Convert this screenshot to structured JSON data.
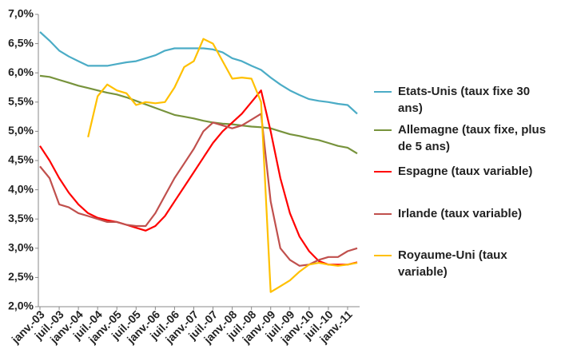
{
  "chart_data": {
    "type": "line",
    "categories": [
      "janv.-03",
      null,
      "juil.-03",
      null,
      "janv.-04",
      null,
      "juil.-04",
      null,
      "janv.-05",
      null,
      "juil.-05",
      null,
      "janv.-06",
      null,
      "juil.-06",
      null,
      "janv.-07",
      null,
      "juil.-07",
      null,
      "janv.-08",
      null,
      "juil.-08",
      null,
      "janv.-09",
      null,
      "juil.-09",
      null,
      "janv.-10",
      null,
      "juil.-10",
      null,
      "janv.-11",
      null
    ],
    "ylim": [
      2,
      7
    ],
    "yticks": [
      {
        "value": 2,
        "label": "2,0%"
      },
      {
        "value": 2.5,
        "label": "2,5%"
      },
      {
        "value": 3,
        "label": "3,0%"
      },
      {
        "value": 3.5,
        "label": "3,5%"
      },
      {
        "value": 4,
        "label": "4,0%"
      },
      {
        "value": 4.5,
        "label": "4,5%"
      },
      {
        "value": 5,
        "label": "5,0%"
      },
      {
        "value": 5.5,
        "label": "5,5%"
      },
      {
        "value": 6,
        "label": "6,0%"
      },
      {
        "value": 6.5,
        "label": "6,5%"
      },
      {
        "value": 7,
        "label": "7,0%"
      }
    ],
    "grid": false,
    "series": [
      {
        "name": "Etats-Unis (taux fixe 30 ans)",
        "color": "#4bacc6",
        "values": [
          6.7,
          6.55,
          6.38,
          6.28,
          6.2,
          6.12,
          6.12,
          6.12,
          6.15,
          6.18,
          6.2,
          6.25,
          6.3,
          6.38,
          6.42,
          6.42,
          6.42,
          6.42,
          6.4,
          6.35,
          6.25,
          6.2,
          6.12,
          6.05,
          5.92,
          5.8,
          5.7,
          5.62,
          5.55,
          5.52,
          5.5,
          5.47,
          5.45,
          5.3
        ]
      },
      {
        "name": "Allemagne (taux fixe, plus de 5 ans)",
        "color": "#77933c",
        "values": [
          5.95,
          5.93,
          5.88,
          5.83,
          5.78,
          5.74,
          5.7,
          5.66,
          5.63,
          5.58,
          5.52,
          5.46,
          5.4,
          5.34,
          5.28,
          5.25,
          5.22,
          5.18,
          5.15,
          5.13,
          5.12,
          5.1,
          5.08,
          5.07,
          5.05,
          5.0,
          4.95,
          4.92,
          4.88,
          4.85,
          4.8,
          4.75,
          4.72,
          4.62
        ]
      },
      {
        "name": "Espagne (taux variable)",
        "color": "#ff0000",
        "values": [
          4.75,
          4.5,
          4.2,
          3.95,
          3.75,
          3.6,
          3.52,
          3.48,
          3.45,
          3.4,
          3.35,
          3.3,
          3.38,
          3.55,
          3.8,
          4.05,
          4.3,
          4.55,
          4.8,
          5.0,
          5.15,
          5.3,
          5.5,
          5.7,
          5.0,
          4.2,
          3.6,
          3.2,
          2.95,
          2.78,
          2.72,
          2.72,
          2.72,
          2.76
        ]
      },
      {
        "name": "Irlande (taux variable)",
        "color": "#c0504d",
        "values": [
          4.4,
          4.2,
          3.75,
          3.7,
          3.6,
          3.55,
          3.5,
          3.45,
          3.45,
          3.4,
          3.38,
          3.38,
          3.6,
          3.9,
          4.2,
          4.45,
          4.7,
          5.0,
          5.15,
          5.1,
          5.05,
          5.1,
          5.2,
          5.3,
          3.8,
          3.0,
          2.8,
          2.7,
          2.72,
          2.8,
          2.85,
          2.85,
          2.95,
          3.0
        ]
      },
      {
        "name": "Royaume-Uni (taux variable)",
        "color": "#ffc000",
        "values": [
          null,
          null,
          null,
          null,
          null,
          4.9,
          5.6,
          5.8,
          5.7,
          5.65,
          5.45,
          5.5,
          5.48,
          5.5,
          5.75,
          6.1,
          6.2,
          6.58,
          6.5,
          6.2,
          5.9,
          5.92,
          5.9,
          5.5,
          2.25,
          2.35,
          2.45,
          2.6,
          2.72,
          2.75,
          2.72,
          2.7,
          2.72,
          2.75
        ]
      }
    ]
  }
}
